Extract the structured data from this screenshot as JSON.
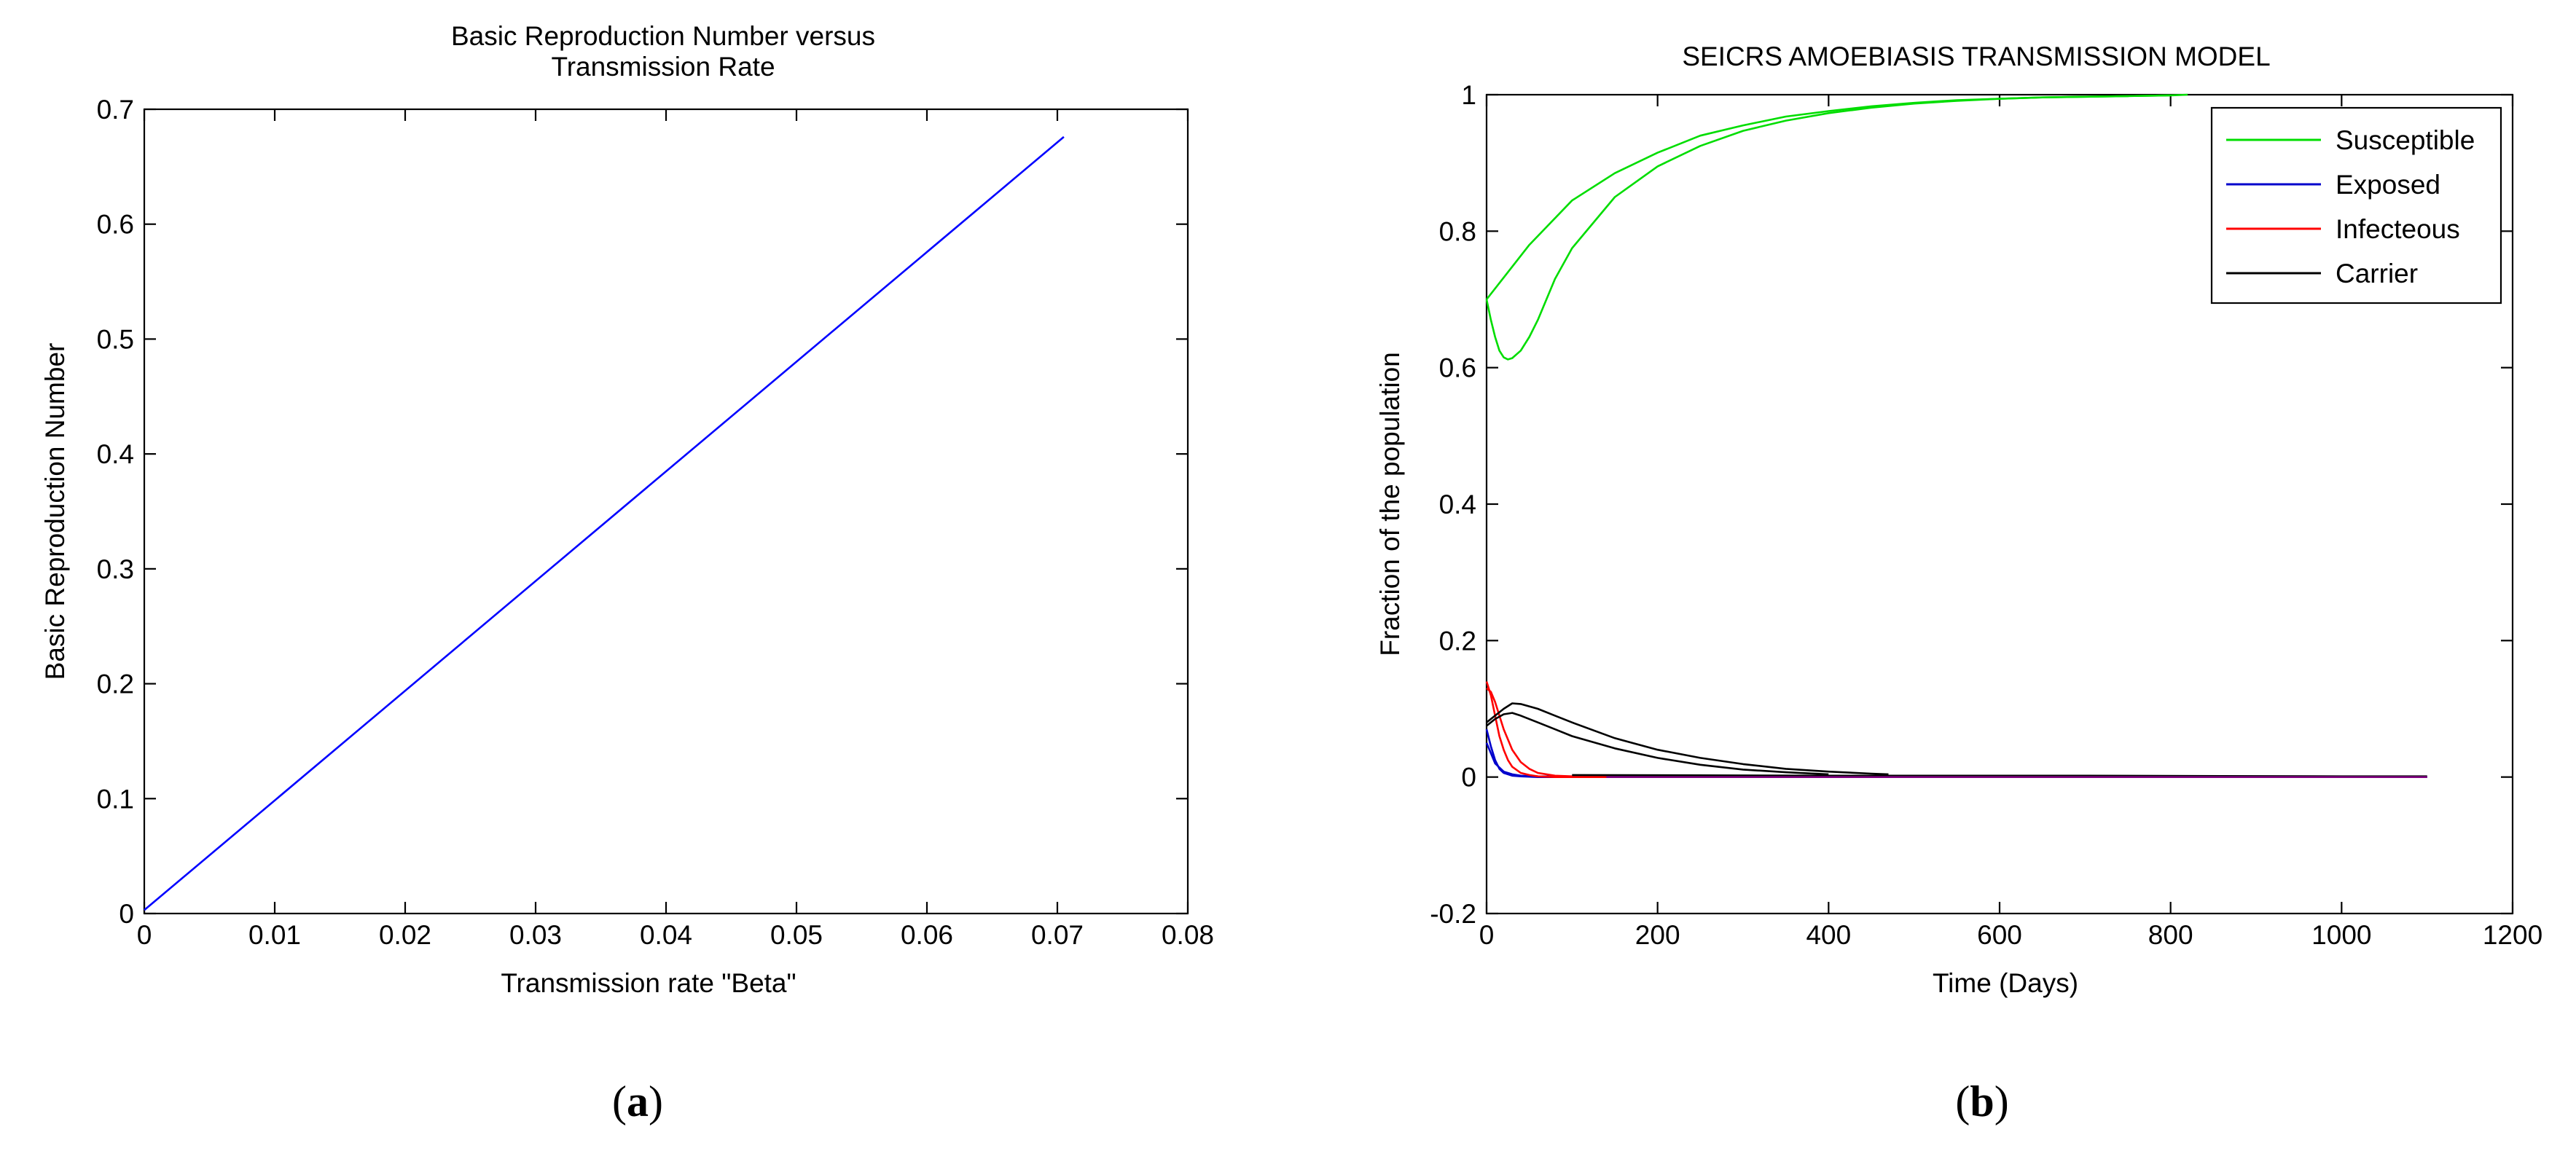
{
  "chart_data": [
    {
      "type": "line",
      "title": [
        "Basic Reproduction Number versus",
        "Transmission Rate"
      ],
      "xlabel": "Transmission rate \"Beta\"",
      "ylabel": "Basic Reproduction Number",
      "xlim": [
        0,
        0.08
      ],
      "ylim": [
        0,
        0.7
      ],
      "xticks": [
        0,
        0.01,
        0.02,
        0.03,
        0.04,
        0.05,
        0.06,
        0.07,
        0.08
      ],
      "yticks": [
        0,
        0.1,
        0.2,
        0.3,
        0.4,
        0.5,
        0.6,
        0.7
      ],
      "xtick_labels": [
        "0",
        "0.01",
        "0.02",
        "0.03",
        "0.04",
        "0.05",
        "0.06",
        "0.07",
        "0.08"
      ],
      "ytick_labels": [
        "0",
        "0.1",
        "0.2",
        "0.3",
        "0.4",
        "0.5",
        "0.6",
        "0.7"
      ],
      "grid": false,
      "series": [
        {
          "color": "#0000ff",
          "x": [
            0,
            0.0705
          ],
          "y": [
            0.003,
            0.676
          ]
        }
      ],
      "caption": "a"
    },
    {
      "type": "line",
      "title": [
        "SEICRS AMOEBIASIS TRANSMISSION MODEL"
      ],
      "xlabel": "Time (Days)",
      "ylabel": "Fraction of the population",
      "xlim": [
        0,
        1200
      ],
      "ylim": [
        -0.2,
        1
      ],
      "xticks": [
        0,
        200,
        400,
        600,
        800,
        1000,
        1200
      ],
      "yticks": [
        -0.2,
        0,
        0.2,
        0.4,
        0.6,
        0.8,
        1
      ],
      "xtick_labels": [
        "0",
        "200",
        "400",
        "600",
        "800",
        "1000",
        "1200"
      ],
      "ytick_labels": [
        "-0.2",
        "0",
        "0.2",
        "0.4",
        "0.6",
        "0.8",
        "1"
      ],
      "grid": false,
      "legend_position": "top-right",
      "series": [
        {
          "name": "Susceptible",
          "color": "#00dd00",
          "x": [
            0,
            50,
            100,
            150,
            200,
            250,
            300,
            350,
            400,
            450,
            500,
            550,
            600,
            650,
            700,
            750,
            800,
            820
          ],
          "y": [
            0.7,
            0.78,
            0.845,
            0.885,
            0.915,
            0.94,
            0.955,
            0.968,
            0.976,
            0.983,
            0.988,
            0.992,
            0.994,
            0.996,
            0.997,
            0.998,
            0.999,
            1.0
          ]
        },
        {
          "name": "",
          "color": "#00dd00",
          "x": [
            0,
            5,
            10,
            15,
            20,
            25,
            30,
            40,
            50,
            60,
            80,
            100,
            150,
            200,
            250,
            300,
            350,
            400,
            450,
            500,
            550,
            600,
            650,
            700,
            750,
            800
          ],
          "y": [
            0.7,
            0.67,
            0.645,
            0.625,
            0.615,
            0.612,
            0.614,
            0.625,
            0.645,
            0.67,
            0.73,
            0.775,
            0.85,
            0.895,
            0.925,
            0.947,
            0.962,
            0.973,
            0.981,
            0.987,
            0.991,
            0.994,
            0.996,
            0.997,
            0.998,
            0.999
          ]
        },
        {
          "name": "Exposed",
          "color": "#0000cc",
          "x": [
            0,
            5,
            10,
            20,
            30,
            40,
            60,
            100,
            200,
            400,
            600,
            800,
            1000,
            1100
          ],
          "y": [
            0.05,
            0.035,
            0.02,
            0.008,
            0.004,
            0.002,
            0.001,
            0.0005,
            0.0002,
            0.0001,
            0,
            0,
            0,
            0
          ]
        },
        {
          "name": "",
          "color": "#0000cc",
          "x": [
            0,
            5,
            10,
            15,
            20,
            30,
            40,
            60,
            100,
            200,
            500,
            1100
          ],
          "y": [
            0.07,
            0.045,
            0.025,
            0.012,
            0.006,
            0.002,
            0.001,
            0,
            0,
            0,
            0,
            0
          ]
        },
        {
          "name": "Infecteous",
          "color": "#ff0000",
          "x": [
            0,
            5,
            10,
            15,
            20,
            30,
            40,
            50,
            60,
            80,
            100,
            150,
            200,
            300
          ],
          "y": [
            0.13,
            0.125,
            0.11,
            0.09,
            0.07,
            0.04,
            0.022,
            0.012,
            0.006,
            0.002,
            0.001,
            0,
            0,
            0
          ]
        },
        {
          "name": "",
          "color": "#ff0000",
          "x": [
            0,
            5,
            10,
            15,
            20,
            25,
            30,
            40,
            50,
            60,
            80,
            100,
            150
          ],
          "y": [
            0.14,
            0.12,
            0.09,
            0.06,
            0.04,
            0.025,
            0.015,
            0.006,
            0.003,
            0.001,
            0,
            0,
            0
          ]
        },
        {
          "name": "Carrier",
          "color": "#000000",
          "x": [
            0,
            10,
            20,
            30,
            40,
            60,
            80,
            100,
            150,
            200,
            250,
            300,
            350,
            400,
            450,
            470
          ],
          "y": [
            0.08,
            0.09,
            0.1,
            0.108,
            0.107,
            0.1,
            0.09,
            0.08,
            0.057,
            0.04,
            0.028,
            0.019,
            0.012,
            0.008,
            0.005,
            0.004
          ]
        },
        {
          "name": "",
          "color": "#000000",
          "x": [
            0,
            10,
            20,
            30,
            40,
            60,
            80,
            100,
            150,
            200,
            250,
            300,
            350,
            400
          ],
          "y": [
            0.075,
            0.085,
            0.092,
            0.094,
            0.09,
            0.08,
            0.07,
            0.06,
            0.042,
            0.028,
            0.018,
            0.011,
            0.007,
            0.004
          ]
        },
        {
          "name": "",
          "color": "#000000",
          "x": [
            100,
            400,
            700,
            1000,
            1100
          ],
          "y": [
            0.003,
            0.002,
            0.002,
            0.001,
            0.001
          ]
        },
        {
          "name": "",
          "color": "#800080",
          "x": [
            140,
            400,
            700,
            1000,
            1100
          ],
          "y": [
            0.0,
            0.0,
            0.0,
            0.0,
            0.0
          ]
        }
      ],
      "legend": [
        "Susceptible",
        "Exposed",
        "Infecteous",
        "Carrier"
      ],
      "legend_colors": [
        "#00dd00",
        "#0000cc",
        "#ff0000",
        "#000000"
      ],
      "caption": "b"
    }
  ]
}
